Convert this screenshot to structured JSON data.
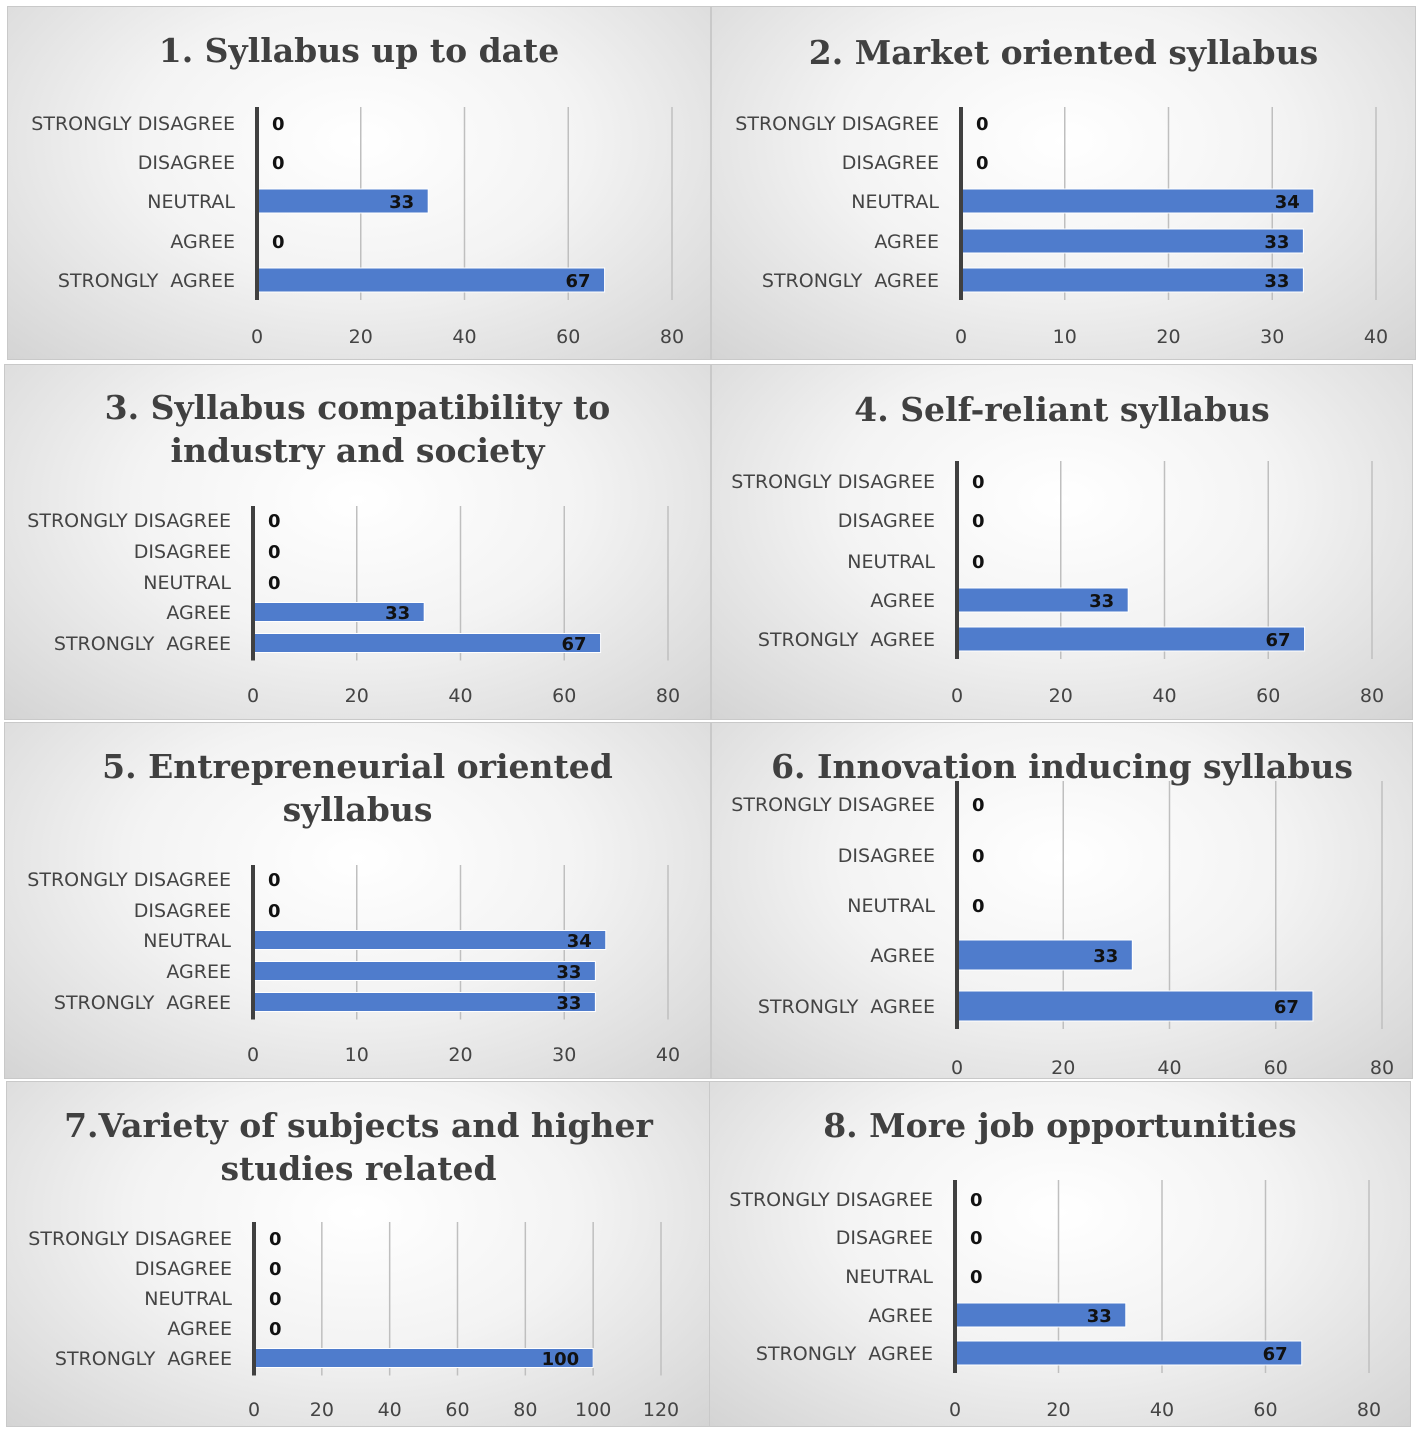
{
  "chart_data": [
    {
      "type": "bar",
      "title": "1. Syllabus up to date",
      "categories": [
        "STRONGLY DISAGREE",
        "DISAGREE",
        "NEUTRAL",
        "AGREE",
        "STRONGLY  AGREE"
      ],
      "values": [
        0,
        0,
        33,
        0,
        67
      ],
      "xticks": [
        0,
        20,
        40,
        60,
        80
      ],
      "xlim": [
        0,
        80
      ],
      "grid": true,
      "bar_color": "#4f7ccc"
    },
    {
      "type": "bar",
      "title": "2. Market oriented syllabus",
      "categories": [
        "STRONGLY DISAGREE",
        "DISAGREE",
        "NEUTRAL",
        "AGREE",
        "STRONGLY  AGREE"
      ],
      "values": [
        0,
        0,
        34,
        33,
        33
      ],
      "xticks": [
        0,
        10,
        20,
        30,
        40
      ],
      "xlim": [
        0,
        40
      ],
      "grid": true,
      "bar_color": "#4f7ccc"
    },
    {
      "type": "bar",
      "title": "3. Syllabus compatibility to\nindustry and society",
      "categories": [
        "STRONGLY DISAGREE",
        "DISAGREE",
        "NEUTRAL",
        "AGREE",
        "STRONGLY  AGREE"
      ],
      "values": [
        0,
        0,
        0,
        33,
        67
      ],
      "xticks": [
        0,
        20,
        40,
        60,
        80
      ],
      "xlim": [
        0,
        80
      ],
      "grid": true,
      "bar_color": "#4f7ccc"
    },
    {
      "type": "bar",
      "title": "4. Self-reliant syllabus",
      "categories": [
        "STRONGLY DISAGREE",
        "DISAGREE",
        "NEUTRAL",
        "AGREE",
        "STRONGLY  AGREE"
      ],
      "values": [
        0,
        0,
        0,
        33,
        67
      ],
      "xticks": [
        0,
        20,
        40,
        60,
        80
      ],
      "xlim": [
        0,
        80
      ],
      "grid": true,
      "bar_color": "#4f7ccc"
    },
    {
      "type": "bar",
      "title": "5. Entrepreneurial oriented\nsyllabus",
      "categories": [
        "STRONGLY DISAGREE",
        "DISAGREE",
        "NEUTRAL",
        "AGREE",
        "STRONGLY  AGREE"
      ],
      "values": [
        0,
        0,
        34,
        33,
        33
      ],
      "xticks": [
        0,
        10,
        20,
        30,
        40
      ],
      "xlim": [
        0,
        40
      ],
      "grid": true,
      "bar_color": "#4f7ccc"
    },
    {
      "type": "bar",
      "title": "6. Innovation inducing syllabus",
      "categories": [
        "STRONGLY DISAGREE",
        "DISAGREE",
        "NEUTRAL",
        "AGREE",
        "STRONGLY  AGREE"
      ],
      "values": [
        0,
        0,
        0,
        33,
        67
      ],
      "xticks": [
        0,
        20,
        40,
        60,
        80
      ],
      "xlim": [
        0,
        80
      ],
      "grid": true,
      "bar_color": "#4f7ccc"
    },
    {
      "type": "bar",
      "title": "7.Variety of subjects and higher\nstudies related",
      "categories": [
        "STRONGLY DISAGREE",
        "DISAGREE",
        "NEUTRAL",
        "AGREE",
        "STRONGLY  AGREE"
      ],
      "values": [
        0,
        0,
        0,
        0,
        100
      ],
      "xticks": [
        0,
        20,
        40,
        60,
        80,
        100,
        120
      ],
      "xlim": [
        0,
        120
      ],
      "grid": true,
      "bar_color": "#4f7ccc"
    },
    {
      "type": "bar",
      "title": "8. More job opportunities",
      "categories": [
        "STRONGLY DISAGREE",
        "DISAGREE",
        "NEUTRAL",
        "AGREE",
        "STRONGLY  AGREE"
      ],
      "values": [
        0,
        0,
        0,
        33,
        67
      ],
      "xticks": [
        0,
        20,
        40,
        60,
        80
      ],
      "xlim": [
        0,
        80
      ],
      "grid": true,
      "bar_color": "#4f7ccc"
    }
  ]
}
